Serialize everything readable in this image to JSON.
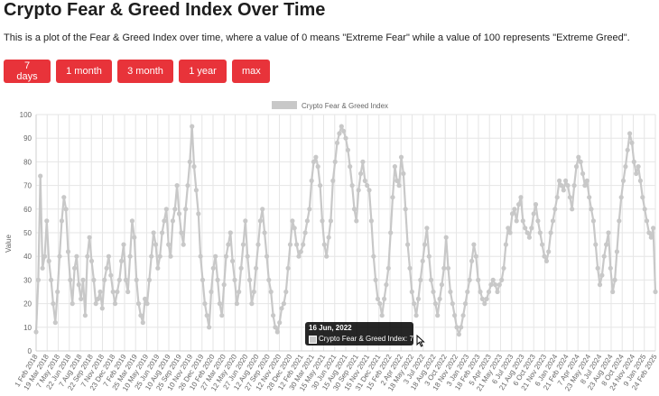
{
  "page": {
    "title": "Crypto Fear & Greed Index Over Time",
    "description": "This is a plot of the Fear & Greed Index over time, where a value of 0 means \"Extreme Fear\" while a value of 100 represents \"Extreme Greed\"."
  },
  "range_buttons": [
    "7 days",
    "1 month",
    "3 month",
    "1 year",
    "max"
  ],
  "tooltip": {
    "date": "16 Jun, 2022",
    "label": "Crypto Fear & Greed Index: 7"
  },
  "colors": {
    "button": "#e8333a",
    "series": "#c8c8c8",
    "grid": "#e6e6e6"
  },
  "chart_data": {
    "type": "line",
    "title": "",
    "xlabel": "",
    "ylabel": "Value",
    "ylim": [
      0,
      100
    ],
    "yticks": [
      0,
      10,
      20,
      30,
      40,
      50,
      60,
      70,
      80,
      90,
      100
    ],
    "legend": {
      "position": "top",
      "entries": [
        "Crypto Fear & Greed Index"
      ]
    },
    "grid": true,
    "x_tick_labels": [
      "1 Feb 2018",
      "19 Mar 2018",
      "7 May 2018",
      "22 Jun 2018",
      "7 Aug 2018",
      "22 Sep 2018",
      "7 Nov 2018",
      "23 Dec 2018",
      "7 Feb 2019",
      "25 Mar 2019",
      "10 May 2019",
      "25 Jun 2019",
      "10 Aug 2019",
      "25 Sep 2019",
      "10 Nov 2019",
      "26 Dec 2019",
      "10 Feb 2020",
      "27 Mar 2020",
      "12 May 2020",
      "27 Jun 2020",
      "12 Aug 2020",
      "27 Sep 2020",
      "12 Nov 2020",
      "28 Dec 2020",
      "12 Feb 2021",
      "30 Mar 2021",
      "15 May 2021",
      "30 Jun 2021",
      "15 Aug 2021",
      "30 Sep 2021",
      "15 Nov 2021",
      "31 Dec 2021",
      "15 Feb 2022",
      "2 Apr 2022",
      "18 May 2022",
      "3 Jul 2022",
      "18 Aug 2022",
      "3 Oct 2022",
      "18 Nov 2022",
      "3 Jan 2023",
      "18 Feb 2023",
      "5 Apr 2023",
      "21 May 2023",
      "6 Jul 2023",
      "21 Aug 2023",
      "6 Oct 2023",
      "21 Nov 2023",
      "6 Jan 2024",
      "21 Feb 2024",
      "7 Apr 2024",
      "23 May 2024",
      "8 Jul 2024",
      "23 Aug 2024",
      "8 Oct 2024",
      "24 Nov 2024",
      "9 Jan 2025",
      "24 Feb 2025"
    ],
    "series": [
      {
        "name": "Crypto Fear & Greed Index",
        "x_start": "1 Feb 2018",
        "x_end": "24 Feb 2025",
        "values": [
          8,
          30,
          74,
          35,
          40,
          55,
          38,
          30,
          20,
          12,
          25,
          40,
          55,
          65,
          60,
          42,
          30,
          20,
          35,
          40,
          28,
          22,
          30,
          15,
          40,
          48,
          38,
          30,
          20,
          22,
          25,
          18,
          30,
          35,
          40,
          32,
          25,
          20,
          25,
          30,
          38,
          45,
          30,
          25,
          40,
          55,
          48,
          30,
          20,
          15,
          12,
          22,
          20,
          30,
          40,
          50,
          45,
          35,
          40,
          50,
          55,
          60,
          45,
          40,
          55,
          60,
          70,
          58,
          50,
          45,
          60,
          70,
          80,
          95,
          78,
          68,
          58,
          40,
          30,
          20,
          15,
          10,
          25,
          35,
          40,
          30,
          20,
          15,
          28,
          40,
          45,
          50,
          38,
          30,
          20,
          25,
          35,
          45,
          55,
          40,
          30,
          20,
          25,
          35,
          45,
          55,
          60,
          50,
          40,
          30,
          25,
          15,
          10,
          8,
          12,
          18,
          20,
          25,
          35,
          45,
          55,
          52,
          45,
          40,
          42,
          45,
          50,
          55,
          60,
          72,
          80,
          82,
          78,
          70,
          55,
          45,
          40,
          48,
          55,
          72,
          80,
          88,
          92,
          95,
          93,
          90,
          85,
          78,
          70,
          60,
          55,
          68,
          75,
          80,
          72,
          70,
          68,
          55,
          40,
          30,
          22,
          20,
          15,
          22,
          28,
          35,
          50,
          65,
          78,
          72,
          70,
          82,
          75,
          60,
          45,
          35,
          25,
          20,
          15,
          22,
          30,
          38,
          45,
          52,
          40,
          30,
          25,
          20,
          15,
          22,
          28,
          35,
          48,
          35,
          25,
          20,
          15,
          10,
          7,
          10,
          15,
          20,
          25,
          30,
          38,
          45,
          40,
          30,
          25,
          22,
          20,
          22,
          25,
          28,
          30,
          28,
          25,
          28,
          30,
          35,
          45,
          52,
          50,
          58,
          60,
          55,
          62,
          65,
          55,
          52,
          50,
          48,
          52,
          58,
          62,
          55,
          50,
          45,
          40,
          38,
          42,
          50,
          55,
          60,
          65,
          72,
          70,
          68,
          72,
          70,
          65,
          60,
          70,
          78,
          82,
          80,
          75,
          70,
          72,
          65,
          60,
          55,
          45,
          35,
          28,
          32,
          40,
          45,
          50,
          35,
          25,
          30,
          42,
          55,
          65,
          72,
          78,
          85,
          92,
          88,
          80,
          75,
          78,
          72,
          65,
          60,
          55,
          50,
          48,
          52,
          25
        ]
      }
    ],
    "tooltip_point": {
      "date": "16 Jun, 2022",
      "value": 7
    }
  }
}
